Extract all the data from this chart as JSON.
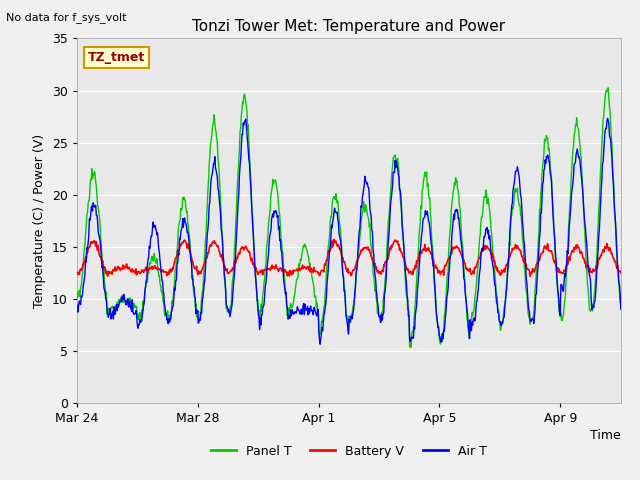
{
  "title": "Tonzi Tower Met: Temperature and Power",
  "subtitle": "No data for f_sys_volt",
  "ylabel": "Temperature (C) / Power (V)",
  "xlabel": "Time",
  "ylim": [
    0,
    35
  ],
  "yticks": [
    0,
    5,
    10,
    15,
    20,
    25,
    30,
    35
  ],
  "xtick_labels": [
    "Mar 24",
    "Mar 28",
    "Apr 1",
    "Apr 5",
    "Apr 9"
  ],
  "xtick_positions": [
    0,
    4,
    8,
    12,
    16
  ],
  "annotation_text": "TZ_tmet",
  "annotation_bg": "#ffffcc",
  "annotation_border": "#cc9900",
  "panel_color": "#00cc00",
  "battery_color": "#ff0000",
  "air_color": "#0000ff",
  "plot_bg": "#e8e8e8",
  "fig_bg": "#f0f0f0",
  "grid_color": "#ffffff",
  "n_days": 18,
  "panel_peaks": [
    22,
    10,
    14,
    19.5,
    27,
    29.5,
    21.5,
    15,
    20,
    19,
    24,
    22,
    21.5,
    20,
    20.5,
    25.5,
    27,
    30
  ],
  "panel_troughs": [
    10,
    9,
    8,
    8,
    8,
    9,
    8.5,
    9,
    7,
    8,
    8,
    6,
    6,
    8,
    7.5,
    8,
    8,
    9
  ],
  "battery_peaks": [
    15.5,
    13,
    13,
    15.5,
    15.5,
    15,
    13,
    13,
    15.5,
    15,
    15.5,
    15,
    15,
    15,
    15,
    15,
    15,
    15
  ],
  "battery_base": 12.5,
  "air_peaks": [
    19,
    10,
    17,
    17.5,
    23,
    27,
    18.5,
    9,
    18.5,
    21.5,
    23,
    18.5,
    18.5,
    16.5,
    22.5,
    24,
    24,
    27
  ],
  "air_troughs": [
    9,
    8.5,
    7.5,
    8,
    8,
    8.5,
    8,
    8.5,
    6.5,
    8,
    8,
    6,
    6,
    7.5,
    7.5,
    7.5,
    11,
    9
  ]
}
